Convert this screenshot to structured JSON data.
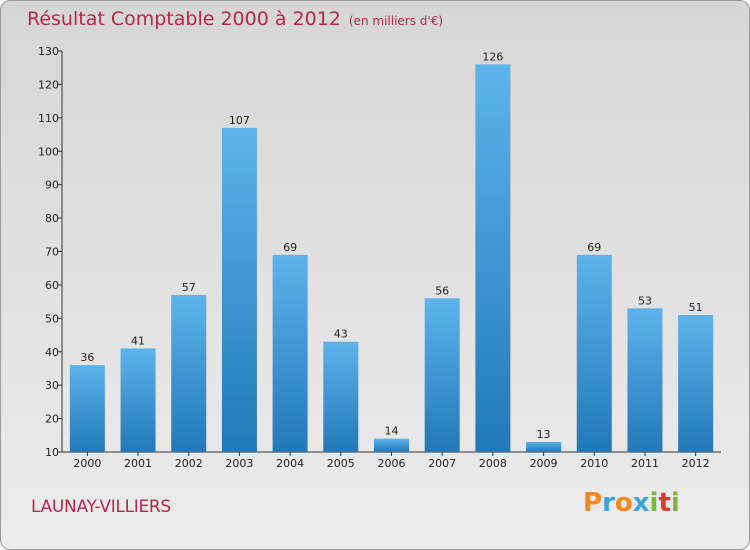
{
  "chart_data": {
    "type": "bar",
    "title": "Résultat Comptable 2000 à 2012",
    "subtitle": "(en milliers d'€)",
    "categories": [
      "2000",
      "2001",
      "2002",
      "2003",
      "2004",
      "2005",
      "2006",
      "2007",
      "2008",
      "2009",
      "2010",
      "2011",
      "2012"
    ],
    "values": [
      36,
      41,
      57,
      107,
      69,
      43,
      14,
      56,
      126,
      13,
      69,
      53,
      51
    ],
    "ylim": [
      10,
      130
    ],
    "yticks": [
      10,
      20,
      30,
      40,
      50,
      60,
      70,
      80,
      90,
      100,
      110,
      120,
      130
    ],
    "grid": false,
    "xlabel": "",
    "ylabel": ""
  },
  "location": "LAUNAY-VILLIERS",
  "logo": {
    "letters": [
      "P",
      "r",
      "o",
      "x",
      "i",
      "t",
      "i"
    ],
    "colors": [
      "#f08a1c",
      "#3aa3dd",
      "#f08a1c",
      "#3aa3dd",
      "#7cb83e",
      "#d83a2e",
      "#7cb83e"
    ]
  },
  "colors": {
    "accent": "#b5284d",
    "bar_top": "#5db3ea",
    "bar_bottom": "#2378b9"
  }
}
